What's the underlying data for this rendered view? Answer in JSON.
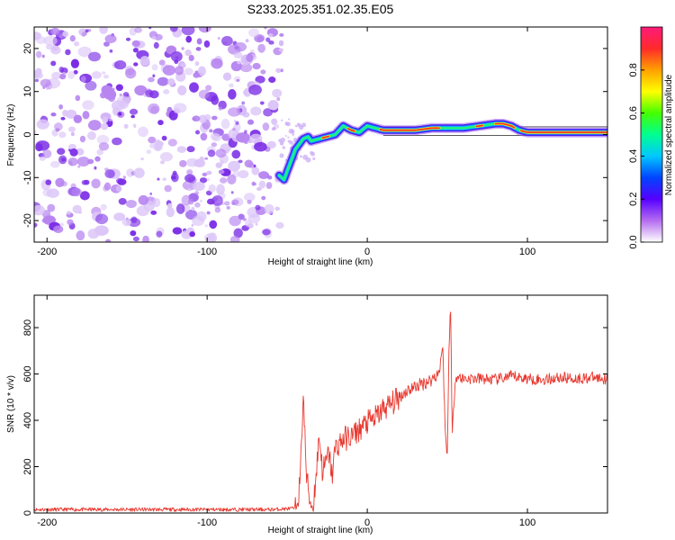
{
  "title": "S233.2025.351.02.35.E05",
  "colors": {
    "snr_line": "#e8382f",
    "blob": "#7b2ee6",
    "ridge": "#ff2a2a",
    "track": "#5a5a5a"
  },
  "colormap": {
    "name": "rainbow-white",
    "stops": [
      "#ffffff",
      "#b46cf0",
      "#5500ff",
      "#0044ff",
      "#00c8ff",
      "#00ff90",
      "#44ff00",
      "#ffff00",
      "#ffa000",
      "#ff2a2a",
      "#ff1a7a"
    ]
  },
  "chart_data": [
    {
      "type": "heatmap",
      "title": "S233.2025.351.02.35.E05",
      "xlabel": "Height of straight line (km)",
      "ylabel": "Frequency (Hz)",
      "xlim": [
        -208,
        150
      ],
      "ylim": [
        -25,
        25
      ],
      "xticks": [
        -200,
        -100,
        0,
        100
      ],
      "yticks": [
        -20,
        -10,
        0,
        10,
        20
      ],
      "noise_region_x": [
        -208,
        -55
      ],
      "ridge": {
        "x": [
          -55,
          -52,
          -50,
          -48,
          -45,
          -43,
          -40,
          -37,
          -35,
          -30,
          -25,
          -20,
          -15,
          -10,
          -5,
          0,
          5,
          10,
          20,
          30,
          40,
          50,
          60,
          70,
          80,
          85,
          90,
          95,
          100,
          110,
          120,
          130,
          140,
          150
        ],
        "y": [
          -9.5,
          -10.5,
          -8.5,
          -6.5,
          -3.5,
          -2.5,
          -1.0,
          -0.5,
          -1.5,
          -1.0,
          -0.5,
          0.0,
          2.0,
          1.0,
          0.5,
          2.0,
          1.5,
          1.0,
          1.0,
          1.0,
          1.5,
          1.5,
          1.5,
          2.0,
          2.5,
          2.5,
          2.0,
          1.0,
          0.5,
          0.5,
          0.5,
          0.5,
          0.5,
          0.5
        ]
      },
      "track_lines_hz": [
        1.8,
        -0.2
      ],
      "colorbar": {
        "label": "Normalized spectral amplitude",
        "range": [
          0.0,
          1.0
        ],
        "ticks": [
          0.0,
          0.2,
          0.4,
          0.6,
          0.8
        ],
        "tick_labels": [
          "0.0",
          "0.2",
          "0.4",
          "0.6",
          "0.8"
        ]
      }
    },
    {
      "type": "line",
      "xlabel": "Height of straight line (km)",
      "ylabel": "SNR (10 * v/v)",
      "xlim": [
        -208,
        150
      ],
      "ylim": [
        0,
        940
      ],
      "xticks": [
        -200,
        -100,
        0,
        100
      ],
      "yticks": [
        0,
        200,
        400,
        600,
        800
      ],
      "series": [
        {
          "name": "SNR",
          "x": [
            -208,
            -150,
            -100,
            -60,
            -45,
            -42,
            -40,
            -38,
            -36,
            -34,
            -32,
            -30,
            -28,
            -26,
            -24,
            -22,
            -20,
            -15,
            -10,
            -5,
            0,
            5,
            10,
            15,
            20,
            25,
            30,
            35,
            40,
            45,
            47,
            49,
            50,
            51,
            52,
            53,
            55,
            60,
            70,
            80,
            90,
            100,
            110,
            120,
            130,
            140,
            150
          ],
          "y": [
            15,
            15,
            15,
            15,
            20,
            120,
            520,
            160,
            60,
            20,
            160,
            340,
            180,
            210,
            260,
            160,
            280,
            320,
            330,
            360,
            390,
            410,
            450,
            470,
            500,
            530,
            545,
            560,
            575,
            610,
            730,
            300,
            250,
            700,
            920,
            330,
            590,
            580,
            580,
            575,
            590,
            580,
            575,
            585,
            580,
            585,
            580
          ]
        }
      ]
    }
  ]
}
